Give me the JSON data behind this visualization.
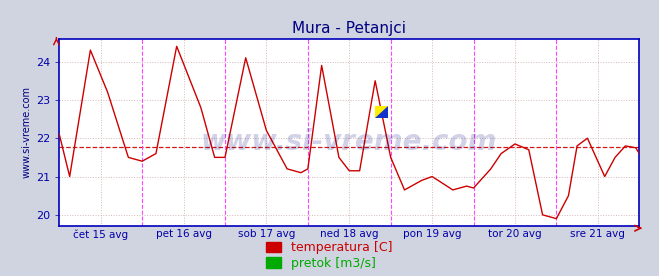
{
  "title": "Mura - Petanjci",
  "title_color": "#000080",
  "title_fontsize": 11,
  "bg_color": "#d0d4e0",
  "plot_bg_color": "#ffffff",
  "grid_color": "#d8b8b8",
  "grid_linestyle": ":",
  "xlim": [
    0,
    336
  ],
  "ylim": [
    19.7,
    24.6
  ],
  "yticks": [
    20,
    21,
    22,
    23,
    24
  ],
  "ytick_color": "#0000aa",
  "xtick_labels": [
    "čet 15 avg",
    "pet 16 avg",
    "sob 17 avg",
    "ned 18 avg",
    "pon 19 avg",
    "tor 20 avg",
    "sre 21 avg"
  ],
  "xtick_positions": [
    24,
    72,
    120,
    168,
    216,
    264,
    312
  ],
  "vline_positions": [
    48,
    96,
    144,
    192,
    240,
    288,
    336
  ],
  "vline_color": "#ff44ff",
  "avg_line_y": 21.78,
  "avg_line_color": "#cc0000",
  "avg_line_style": "--",
  "line_color": "#cc0000",
  "line_width": 1.0,
  "watermark_text": "www.si-vreme.com",
  "watermark_color": "#000080",
  "watermark_alpha": 0.18,
  "watermark_fontsize": 20,
  "ylabel_text": "www.si-vreme.com",
  "ylabel_color": "#000080",
  "ylabel_fontsize": 7,
  "border_color": "#0000bb",
  "legend_temp_color": "#cc0000",
  "legend_flow_color": "#00aa00",
  "legend_fontsize": 9,
  "keypoints_x": [
    0,
    6,
    18,
    28,
    40,
    48,
    56,
    68,
    82,
    90,
    96,
    108,
    120,
    132,
    140,
    144,
    152,
    162,
    168,
    174,
    183,
    192,
    200,
    210,
    216,
    228,
    236,
    240,
    250,
    256,
    264,
    272,
    280,
    288,
    295,
    300,
    306,
    316,
    322,
    328,
    334,
    336
  ],
  "keypoints_y": [
    22.1,
    21.0,
    24.3,
    23.2,
    21.5,
    21.4,
    21.6,
    24.4,
    22.8,
    21.5,
    21.5,
    24.1,
    22.2,
    21.2,
    21.1,
    21.2,
    23.9,
    21.5,
    21.15,
    21.15,
    23.5,
    21.5,
    20.65,
    20.9,
    21.0,
    20.65,
    20.75,
    20.7,
    21.2,
    21.6,
    21.85,
    21.7,
    20.0,
    19.9,
    20.5,
    21.8,
    22.0,
    21.0,
    21.5,
    21.8,
    21.75,
    21.6
  ]
}
